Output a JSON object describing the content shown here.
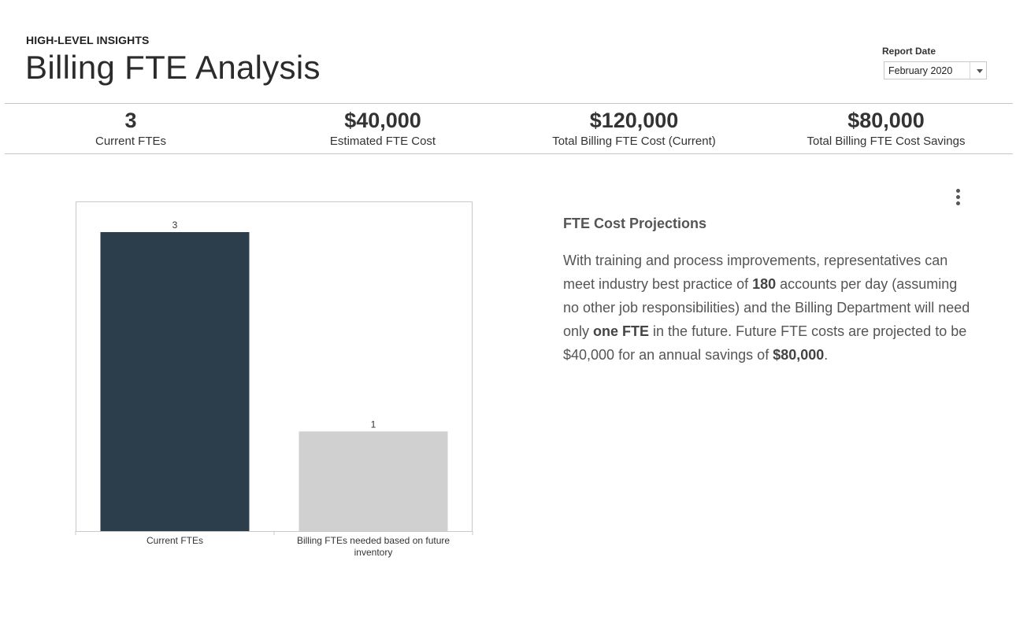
{
  "header": {
    "eyebrow": "HIGH-LEVEL INSIGHTS",
    "title": "Billing FTE Analysis"
  },
  "report_date": {
    "label": "Report Date",
    "value": "February 2020"
  },
  "kpis": [
    {
      "value": "3",
      "label": "Current FTEs"
    },
    {
      "value": "$40,000",
      "label": "Estimated FTE Cost"
    },
    {
      "value": "$120,000",
      "label": "Total Billing FTE Cost (Current)"
    },
    {
      "value": "$80,000",
      "label": "Total Billing FTE Cost Savings"
    }
  ],
  "insight": {
    "title": "FTE Cost Projections",
    "p1": "With training and process improvements, representatives can meet industry best practice of ",
    "b1": "180",
    "p2": " accounts per day (assuming no other job responsibilities) and the Billing Department will need only ",
    "b2": "one FTE",
    "p3": " in the future. Future FTE costs are projected to be $40,000 for an annual savings of ",
    "b3": "$80,000",
    "p4": "."
  },
  "colors": {
    "bar_current": "#2c3e4c",
    "bar_future": "#d0d0d0"
  },
  "chart_data": {
    "type": "bar",
    "categories": [
      "Current FTEs",
      "Billing FTEs needed based on future inventory"
    ],
    "values": [
      3,
      1
    ],
    "data_labels": [
      "3",
      "1"
    ],
    "ylim": [
      0,
      3.3
    ],
    "grid": false,
    "title": "",
    "xlabel": "",
    "ylabel": ""
  }
}
